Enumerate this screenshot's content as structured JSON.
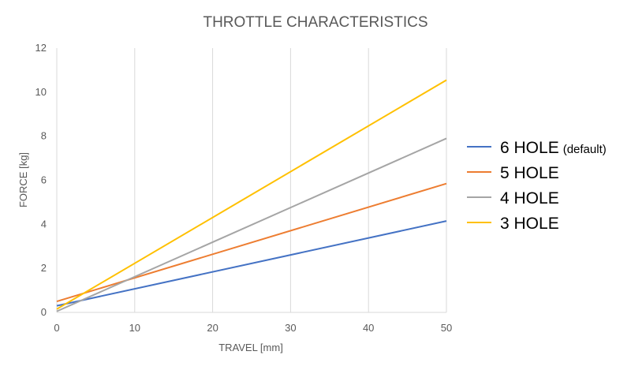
{
  "chart_data": {
    "type": "line",
    "title": "THROTTLE CHARACTERISTICS",
    "xlabel": "TRAVEL [mm]",
    "ylabel": "FORCE [kg]",
    "xlim": [
      0,
      50
    ],
    "ylim": [
      0,
      12
    ],
    "xticks": [
      0,
      10,
      20,
      30,
      40,
      50
    ],
    "yticks": [
      0,
      2,
      4,
      6,
      8,
      10,
      12
    ],
    "grid": "vertical",
    "legend_position": "right",
    "series": [
      {
        "name": "6 HOLE",
        "name_note": "(default)",
        "color": "#4472c4",
        "x": [
          0,
          50
        ],
        "y": [
          0.3,
          4.15
        ]
      },
      {
        "name": "5 HOLE",
        "name_note": "",
        "color": "#ed7d31",
        "x": [
          0,
          50
        ],
        "y": [
          0.5,
          5.85
        ]
      },
      {
        "name": "4 HOLE",
        "name_note": "",
        "color": "#a5a5a5",
        "x": [
          0,
          50
        ],
        "y": [
          0.05,
          7.9
        ]
      },
      {
        "name": "3 HOLE",
        "name_note": "",
        "color": "#ffc000",
        "x": [
          0,
          50
        ],
        "y": [
          0.15,
          10.55
        ]
      }
    ]
  }
}
